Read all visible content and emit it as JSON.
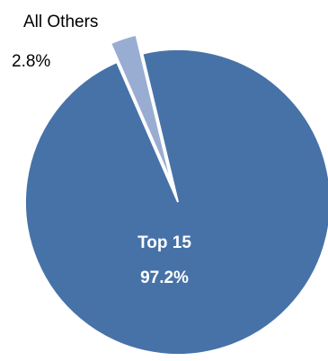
{
  "chart_data": {
    "type": "pie",
    "slices": [
      {
        "name": "Top 15",
        "value": 97.2,
        "value_label": "97.2%",
        "color": "#4672A8"
      },
      {
        "name": "All Others",
        "value": 2.8,
        "value_label": "2.8%",
        "color": "#99ADD3",
        "exploded": true
      }
    ],
    "title": "",
    "legend": "none",
    "label_colors": {
      "inside": "#ffffff",
      "outside": "#000000"
    }
  }
}
